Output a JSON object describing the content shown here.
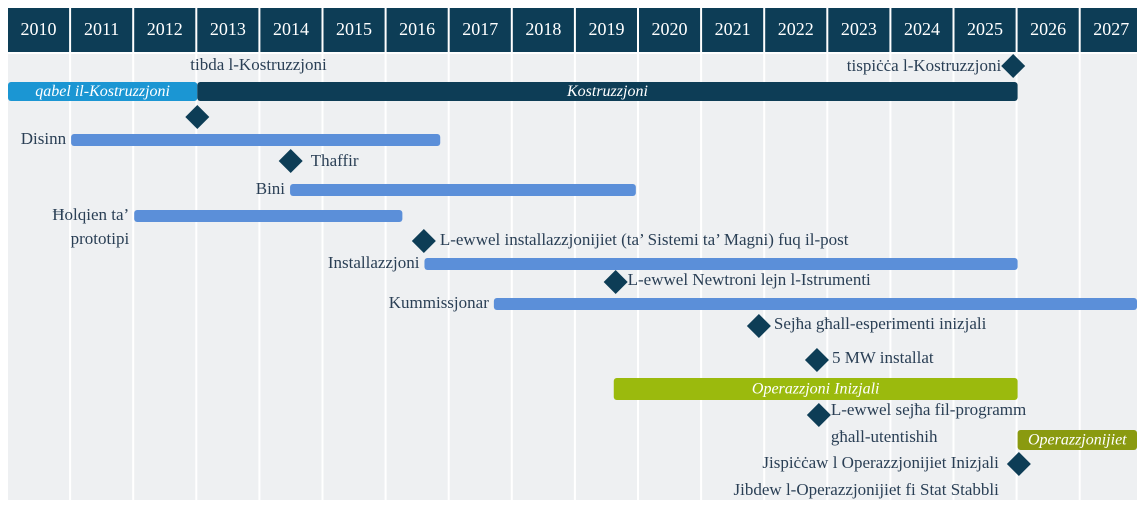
{
  "chart_data": {
    "type": "timeline",
    "years": [
      2010,
      2011,
      2012,
      2013,
      2014,
      2015,
      2016,
      2017,
      2018,
      2019,
      2020,
      2021,
      2022,
      2023,
      2024,
      2025,
      2026,
      2027
    ],
    "bars": [
      {
        "name": [
          "qabel il-Kostruzzjoni"
        ],
        "start": 2010,
        "end": 2013,
        "color": "#1b96d3"
      },
      {
        "name": [
          "Kostruzzjoni"
        ],
        "start": 2013,
        "end": 2026,
        "color": "#0d3d56"
      },
      {
        "name": [
          "Disinn"
        ],
        "start": 2011,
        "end": 2016.85,
        "color": "#5b8fd9"
      },
      {
        "name": [
          "Bini"
        ],
        "start": 2014.47,
        "end": 2019.95,
        "color": "#5b8fd9"
      },
      {
        "name": [
          "Ħolqien ta’",
          "prototipi"
        ],
        "start": 2012,
        "end": 2016.25,
        "color": "#5b8fd9"
      },
      {
        "name": [
          "Installazzjoni"
        ],
        "start": 2016.6,
        "end": 2026,
        "color": "#5b8fd9"
      },
      {
        "name": [
          "Kummissjonar"
        ],
        "start": 2017.7,
        "end": 2027.9,
        "color": "#5b8fd9"
      },
      {
        "name": [
          "Operazzjoni Inizjali"
        ],
        "start": 2019.6,
        "end": 2026,
        "color": "#9bba0d"
      },
      {
        "name": [
          "Operazzjonijiet"
        ],
        "start": 2026,
        "end": 2027.9,
        "color": "#8a9a10"
      }
    ],
    "milestones": [
      {
        "label": [
          "tibda l-Kostruzzjoni"
        ],
        "x": 2013
      },
      {
        "label": [
          "tispiċċa l-Kostruzzjoni"
        ],
        "x": 2025.93
      },
      {
        "label": [
          "Thaffir"
        ],
        "x": 2014.48
      },
      {
        "label": [
          "L-ewwel installazzjonijiet (ta’ Sistemi ta’ Magni) fuq il-post"
        ],
        "x": 2016.59
      },
      {
        "label": [
          "L-ewwel Newtroni lejn l-Istrumenti"
        ],
        "x": 2019.63
      },
      {
        "label": [
          "Sejħa għall-esperimenti inizjali"
        ],
        "x": 2021.9
      },
      {
        "label": [
          "5 MW installat"
        ],
        "x": 2022.82
      },
      {
        "label": [
          "L-ewwel sejħa fil-programm",
          "għall-utentishih"
        ],
        "x": 2022.85
      },
      {
        "label": [
          "Jispiċċaw l Operazzjonijiet Inizjali",
          "Jibdew l-Operazzjonijiet fi Stat Stabbli"
        ],
        "x": 2026.02
      }
    ]
  }
}
